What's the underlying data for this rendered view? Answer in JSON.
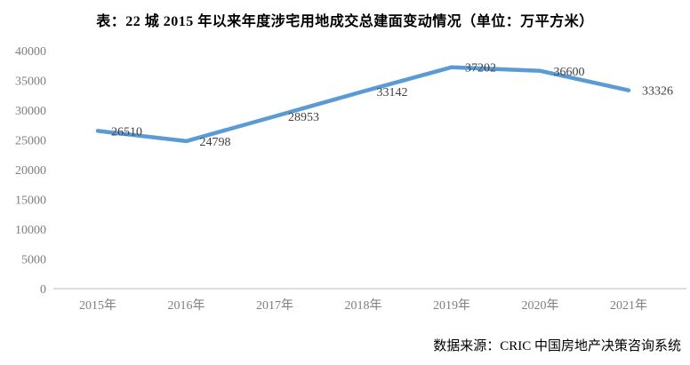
{
  "title": "表：22 城 2015 年以来年度涉宅用地成交总建面变动情况（单位：万平方米）",
  "source": "数据来源：CRIC 中国房地产决策咨询系统",
  "colors": {
    "line": "#5B9BD5",
    "axis_line": "#D3D3D3",
    "axis_label": "#7F7F7F",
    "data_label": "#404040",
    "title_text": "#000000"
  },
  "chart_data": {
    "type": "line",
    "categories": [
      "2015年",
      "2016年",
      "2017年",
      "2018年",
      "2019年",
      "2020年",
      "2021年"
    ],
    "values": [
      26510,
      24798,
      28953,
      33142,
      37202,
      36600,
      33326
    ],
    "title": "表：22 城 2015 年以来年度涉宅用地成交总建面变动情况（单位：万平方米）",
    "xlabel": "",
    "ylabel": "",
    "ylim": [
      0,
      40000
    ],
    "ytick_step": 5000,
    "grid": false,
    "legend": "none",
    "data_labels": true,
    "source": "数据来源：CRIC 中国房地产决策咨询系统"
  }
}
